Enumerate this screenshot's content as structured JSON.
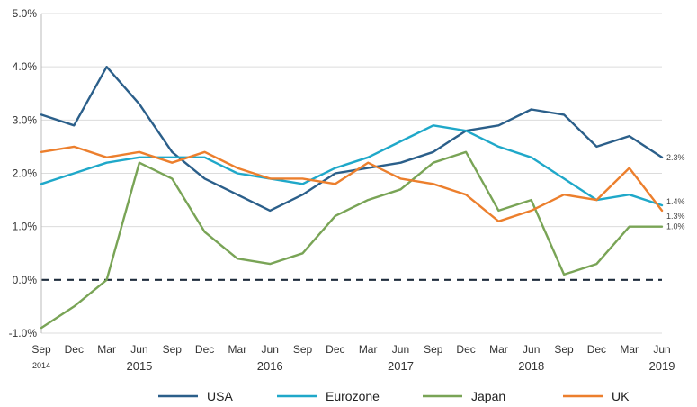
{
  "chart_data": {
    "type": "line",
    "categories": [
      "Sep",
      "Dec",
      "Mar",
      "Jun",
      "Sep",
      "Dec",
      "Mar",
      "Jun",
      "Sep",
      "Dec",
      "Mar",
      "Jun",
      "Sep",
      "Dec",
      "Mar",
      "Jun",
      "Sep",
      "Dec",
      "Mar",
      "Jun"
    ],
    "years": [
      {
        "label": "2014",
        "index": 0,
        "small": true
      },
      {
        "label": "2015",
        "index": 3,
        "small": false
      },
      {
        "label": "2016",
        "index": 7,
        "small": false
      },
      {
        "label": "2017",
        "index": 11,
        "small": false
      },
      {
        "label": "2018",
        "index": 15,
        "small": false
      },
      {
        "label": "2019",
        "index": 19,
        "small": false
      }
    ],
    "y_ticks": [
      "-1.0%",
      "0.0%",
      "1.0%",
      "2.0%",
      "3.0%",
      "4.0%",
      "5.0%"
    ],
    "ylim": [
      -1,
      5
    ],
    "zero_line": "dashed",
    "series": [
      {
        "name": "USA",
        "color": "#2b5f8a",
        "values": [
          3.1,
          2.9,
          4.0,
          3.3,
          2.4,
          1.9,
          1.6,
          1.3,
          1.6,
          2.0,
          2.1,
          2.2,
          2.4,
          2.8,
          2.9,
          3.2,
          3.1,
          2.5,
          2.7,
          2.3
        ],
        "end_label": "2.3%"
      },
      {
        "name": "Eurozone",
        "color": "#1fa8c9",
        "values": [
          1.8,
          2.0,
          2.2,
          2.3,
          2.3,
          2.3,
          2.0,
          1.9,
          1.8,
          2.1,
          2.3,
          2.6,
          2.9,
          2.8,
          2.5,
          2.3,
          1.9,
          1.5,
          1.6,
          1.4
        ],
        "end_label": "1.4%"
      },
      {
        "name": "Japan",
        "color": "#79a456",
        "values": [
          -0.9,
          -0.5,
          0.0,
          2.2,
          1.9,
          0.9,
          0.4,
          0.3,
          0.5,
          1.2,
          1.5,
          1.7,
          2.2,
          2.4,
          1.3,
          1.5,
          0.1,
          0.3,
          1.0,
          1.0
        ],
        "end_label": "1.0%"
      },
      {
        "name": "UK",
        "color": "#ec7f2d",
        "values": [
          2.4,
          2.5,
          2.3,
          2.4,
          2.2,
          2.4,
          2.1,
          1.9,
          1.9,
          1.8,
          2.2,
          1.9,
          1.8,
          1.6,
          1.1,
          1.3,
          1.6,
          1.5,
          2.1,
          1.3
        ],
        "end_label": "1.3%"
      }
    ],
    "legend_position": "bottom"
  }
}
